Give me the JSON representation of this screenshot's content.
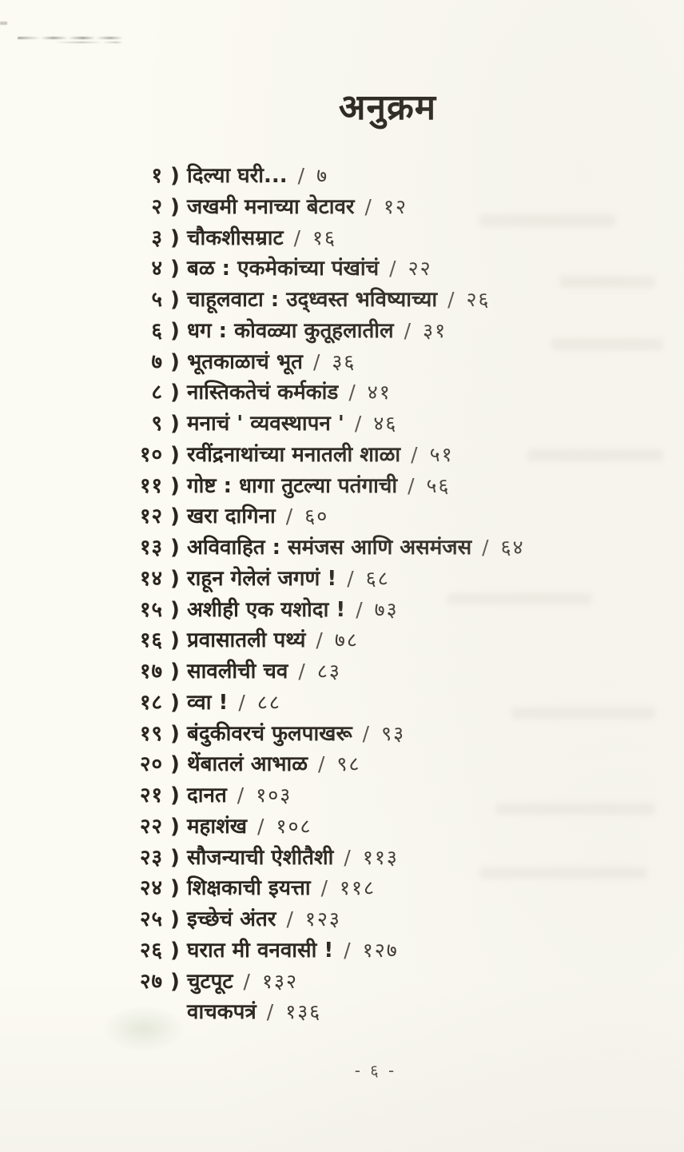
{
  "page": {
    "title": "अनुक्रम",
    "footer_page_label": "- ६ -",
    "paper_color": "#fbfaf3",
    "ink_color": "#2a241f"
  },
  "toc": {
    "separator": "/",
    "entries": [
      {
        "num": "१",
        "bracket": ")",
        "title": "दिल्या घरी...",
        "page": "७"
      },
      {
        "num": "२",
        "bracket": ")",
        "title": "जखमी मनाच्या बेटावर",
        "page": "१२"
      },
      {
        "num": "३",
        "bracket": ")",
        "title": "चौकशीसम्राट",
        "page": "१६"
      },
      {
        "num": "४",
        "bracket": ")",
        "title": "बळ : एकमेकांच्या पंखांचं",
        "page": "२२"
      },
      {
        "num": "५",
        "bracket": ")",
        "title": "चाहूलवाटा : उद्ध्वस्त भविष्याच्या",
        "page": "२६"
      },
      {
        "num": "६",
        "bracket": ")",
        "title": "धग : कोवळ्या कुतूहलातील",
        "page": "३१"
      },
      {
        "num": "७",
        "bracket": ")",
        "title": "भूतकाळाचं भूत",
        "page": "३६"
      },
      {
        "num": "८",
        "bracket": ")",
        "title": "नास्तिकतेचं कर्मकांड",
        "page": "४१"
      },
      {
        "num": "९",
        "bracket": ")",
        "title": "मनाचं ' व्यवस्थापन '",
        "page": "४६"
      },
      {
        "num": "१०",
        "bracket": ")",
        "title": "रवींद्रनाथांच्या मनातली शाळा",
        "page": "५१"
      },
      {
        "num": "११",
        "bracket": ")",
        "title": "गोष्ट : धागा तुटल्या पतंगाची",
        "page": "५६"
      },
      {
        "num": "१२",
        "bracket": ")",
        "title": "खरा दागिना",
        "page": "६०"
      },
      {
        "num": "१३",
        "bracket": ")",
        "title": "अविवाहित : समंजस आणि असमंजस",
        "page": "६४"
      },
      {
        "num": "१४",
        "bracket": ")",
        "title": "राहून गेलेलं जगणं !",
        "page": "६८"
      },
      {
        "num": "१५",
        "bracket": ")",
        "title": "अशीही एक  यशोदा !",
        "page": "७३"
      },
      {
        "num": "१६",
        "bracket": ")",
        "title": "प्रवासातली पथ्यं",
        "page": "७८"
      },
      {
        "num": "१७",
        "bracket": ")",
        "title": "सावलीची चव",
        "page": "८३"
      },
      {
        "num": "१८",
        "bracket": ")",
        "title": "व्वा !",
        "page": "८८"
      },
      {
        "num": "१९",
        "bracket": ")",
        "title": "बंदुकीवरचं फुलपाखरू",
        "page": "९३"
      },
      {
        "num": "२०",
        "bracket": ")",
        "title": "थेंबातलं आभाळ",
        "page": "९८"
      },
      {
        "num": "२१",
        "bracket": ")",
        "title": "दानत",
        "page": "१०३"
      },
      {
        "num": "२२",
        "bracket": ")",
        "title": "महाशंख",
        "page": "१०८"
      },
      {
        "num": "२३",
        "bracket": ")",
        "title": "सौजन्याची ऐशीतैशी",
        "page": "११३"
      },
      {
        "num": "२४",
        "bracket": ")",
        "title": "शिक्षकाची इयत्ता",
        "page": "११८"
      },
      {
        "num": "२५",
        "bracket": ")",
        "title": "इच्छेचं अंतर",
        "page": "१२३"
      },
      {
        "num": "२६",
        "bracket": ")",
        "title": "घरात मी वनवासी !",
        "page": "१२७"
      },
      {
        "num": "२७",
        "bracket": ")",
        "title": "चुटपूट",
        "page": "१३२"
      },
      {
        "num": "",
        "bracket": "",
        "title": "वाचकपत्रं",
        "page": "१३६"
      }
    ]
  }
}
